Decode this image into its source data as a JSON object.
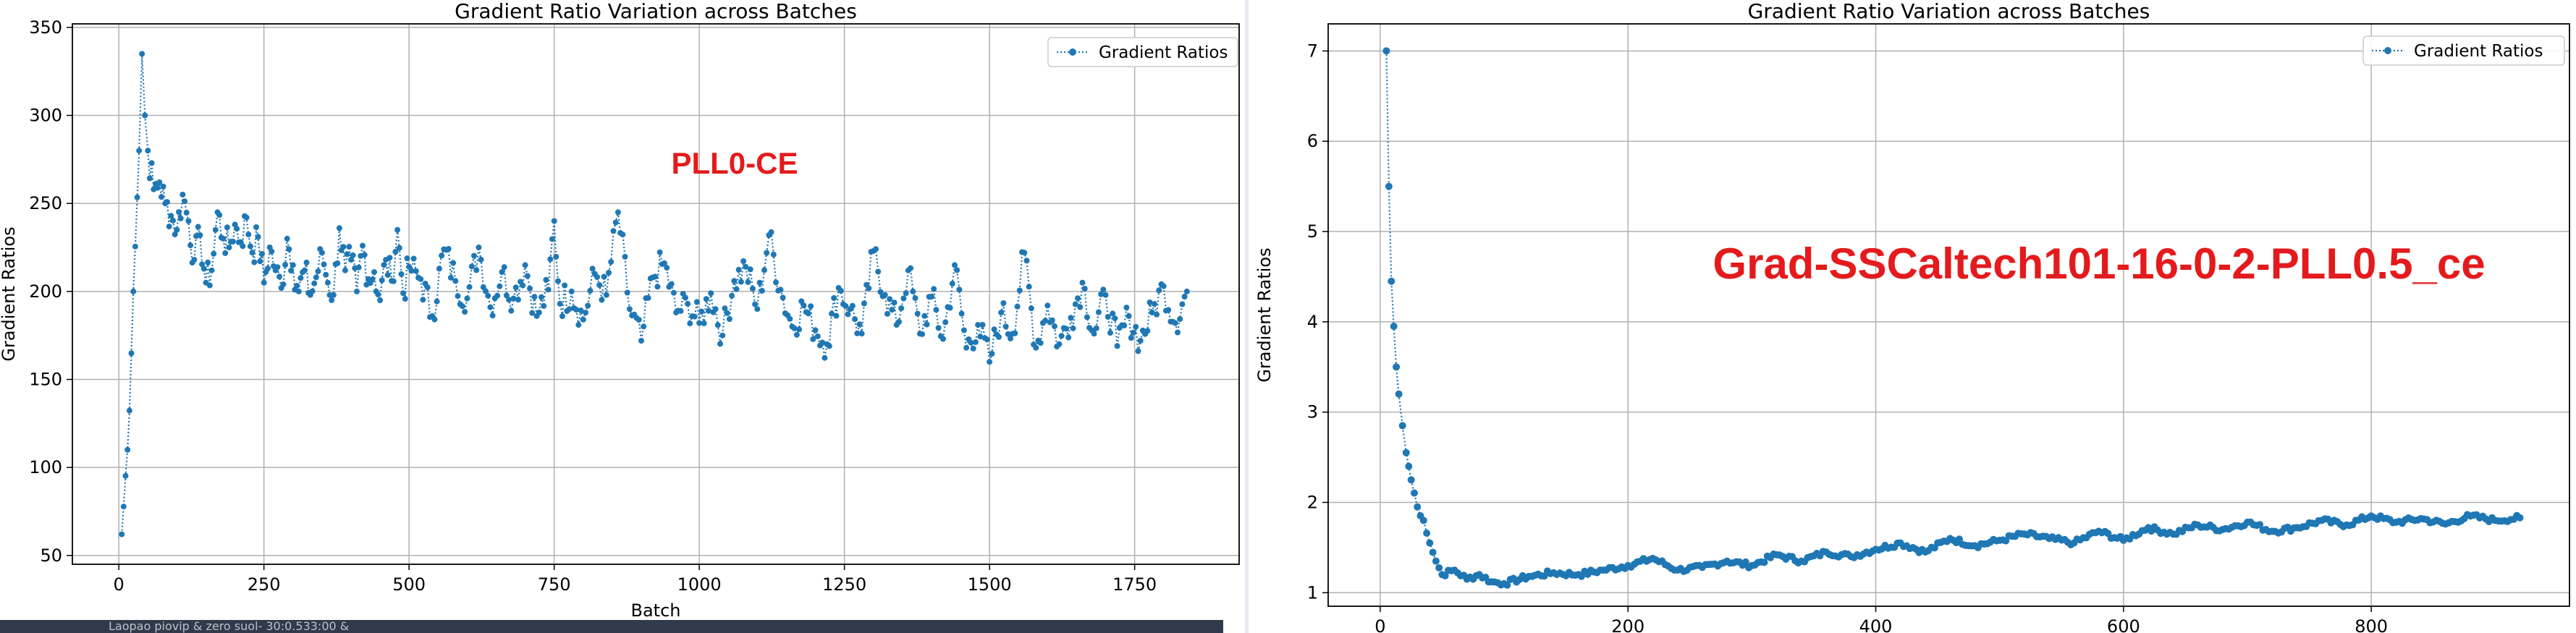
{
  "chart_data": [
    {
      "type": "line",
      "title": "Gradient Ratio Variation across Batches",
      "xlabel": "Batch",
      "ylabel": "Gradient Ratios",
      "xlim": [
        -80,
        1930
      ],
      "ylim": [
        45,
        352
      ],
      "xticks": [
        0,
        250,
        500,
        750,
        1000,
        1250,
        1500,
        1750
      ],
      "yticks": [
        50,
        100,
        150,
        200,
        250,
        300,
        350
      ],
      "grid": true,
      "legend": "top-right",
      "color": "#1f77b4",
      "annotation": "PLL0-CE",
      "series": [
        {
          "name": "Gradient Ratios",
          "marker": "dotted line with circle markers",
          "x": [
            5,
            15,
            25,
            35,
            40,
            45,
            50,
            60,
            70,
            80,
            90,
            100,
            110,
            120,
            130,
            140,
            150,
            160,
            170,
            180,
            190,
            200,
            210,
            220,
            230,
            240,
            250,
            260,
            270,
            280,
            290,
            300,
            310,
            320,
            330,
            340,
            350,
            360,
            370,
            380,
            390,
            400,
            410,
            420,
            430,
            440,
            450,
            460,
            470,
            480,
            490,
            500,
            520,
            540,
            560,
            580,
            600,
            620,
            640,
            660,
            680,
            700,
            720,
            740,
            750,
            760,
            780,
            800,
            820,
            840,
            860,
            880,
            900,
            920,
            940,
            960,
            980,
            1000,
            1020,
            1040,
            1060,
            1080,
            1100,
            1120,
            1140,
            1160,
            1180,
            1200,
            1220,
            1240,
            1260,
            1280,
            1300,
            1320,
            1340,
            1360,
            1380,
            1400,
            1420,
            1440,
            1460,
            1480,
            1500,
            1520,
            1540,
            1560,
            1580,
            1600,
            1620,
            1640,
            1660,
            1680,
            1700,
            1720,
            1740,
            1760,
            1780,
            1800,
            1820,
            1840
          ],
          "y": [
            62,
            110,
            200,
            280,
            335,
            300,
            280,
            258,
            262,
            250,
            243,
            235,
            255,
            240,
            218,
            232,
            205,
            212,
            245,
            230,
            225,
            238,
            228,
            242,
            222,
            231,
            205,
            225,
            212,
            202,
            230,
            215,
            200,
            212,
            198,
            208,
            222,
            205,
            198,
            236,
            212,
            218,
            200,
            226,
            207,
            211,
            195,
            218,
            206,
            235,
            199,
            214,
            207,
            186,
            224,
            206,
            196,
            225,
            191,
            211,
            196,
            215,
            186,
            201,
            240,
            193,
            200,
            184,
            210,
            198,
            245,
            190,
            172,
            208,
            216,
            188,
            193,
            182,
            199,
            175,
            206,
            214,
            190,
            232,
            201,
            180,
            192,
            178,
            170,
            202,
            190,
            176,
            223,
            198,
            181,
            212,
            176,
            197,
            173,
            215,
            168,
            181,
            160,
            188,
            176,
            222,
            168,
            192,
            170,
            185,
            205,
            176,
            198,
            169,
            186,
            172,
            188,
            203,
            182,
            200
          ]
        }
      ]
    },
    {
      "type": "line",
      "title": "Gradient Ratio Variation across Batches",
      "xlabel": "",
      "ylabel": "Gradient Ratios",
      "xlim": [
        -42,
        960
      ],
      "ylim": [
        0.85,
        7.3
      ],
      "xticks": [
        0,
        200,
        400,
        600,
        800
      ],
      "yticks": [
        1,
        2,
        3,
        4,
        5,
        6,
        7
      ],
      "grid": true,
      "legend": "top-right",
      "color": "#1f77b4",
      "annotation": "Grad-SSCaltech101-16-0-2-PLL0.5_ce",
      "series": [
        {
          "name": "Gradient Ratios",
          "marker": "dotted line with circle markers",
          "x": [
            5,
            7,
            9,
            11,
            13,
            15,
            18,
            21,
            25,
            30,
            35,
            40,
            45,
            50,
            60,
            70,
            80,
            90,
            100,
            120,
            140,
            160,
            180,
            200,
            220,
            240,
            260,
            280,
            300,
            320,
            340,
            360,
            380,
            400,
            420,
            440,
            460,
            480,
            500,
            520,
            540,
            560,
            580,
            600,
            620,
            640,
            660,
            680,
            700,
            720,
            740,
            760,
            780,
            800,
            820,
            840,
            860,
            880,
            900,
            920
          ],
          "y": [
            7.0,
            5.5,
            4.45,
            3.95,
            3.5,
            3.2,
            2.85,
            2.55,
            2.25,
            1.95,
            1.8,
            1.55,
            1.35,
            1.2,
            1.25,
            1.15,
            1.2,
            1.12,
            1.1,
            1.18,
            1.22,
            1.2,
            1.25,
            1.3,
            1.38,
            1.25,
            1.28,
            1.35,
            1.3,
            1.42,
            1.35,
            1.45,
            1.4,
            1.48,
            1.55,
            1.45,
            1.6,
            1.52,
            1.58,
            1.65,
            1.6,
            1.55,
            1.68,
            1.58,
            1.72,
            1.65,
            1.75,
            1.7,
            1.78,
            1.68,
            1.72,
            1.8,
            1.75,
            1.85,
            1.78,
            1.82,
            1.76,
            1.85,
            1.8,
            1.83
          ]
        }
      ]
    }
  ],
  "taskbar": {
    "text": "Laopao piovip & zero suol- 30:0.533:00 &"
  }
}
